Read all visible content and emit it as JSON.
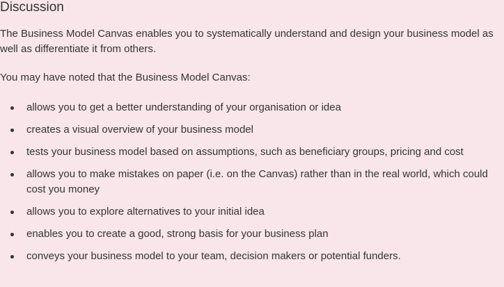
{
  "heading": "Discussion",
  "intro": "The Business Model Canvas enables you to systematically understand and design your business model as well as differentiate it from others.",
  "lead": "You may have noted that the Business Model Canvas:",
  "bullets": [
    "allows you to get a better understanding of your organisation or idea",
    "creates a visual overview of your business model",
    "tests your business model based on assumptions, such as beneficiary groups, pricing and cost",
    "allows you to make mistakes on paper (i.e. on the Canvas) rather than in the real world, which could cost you money",
    "allows you to explore alternatives to your initial idea",
    "enables you to create a good, strong basis for your business plan",
    "conveys your business model to your team, decision makers or potential funders."
  ]
}
